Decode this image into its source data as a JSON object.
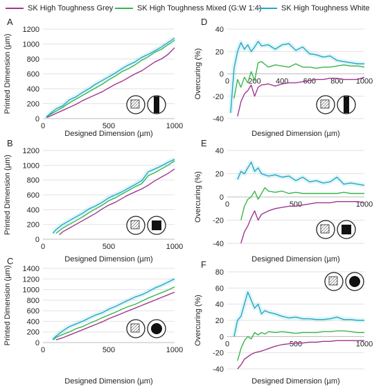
{
  "legend": [
    {
      "name": "SK High Toughness Grey",
      "color": "#a0368f"
    },
    {
      "name": "SK High Toughness Mixed (G:W 1:4)",
      "color": "#39b54a"
    },
    {
      "name": "SK High Toughness White",
      "color": "#1fa9c6"
    }
  ],
  "chart_data": [
    {
      "type": "line",
      "panel": "A",
      "xlabel": "Designed Dimension (µm)",
      "ylabel": "Printed Dimension (µm)",
      "xlim": [
        0,
        1000
      ],
      "ylim": [
        0,
        1200
      ],
      "xticks": [
        0,
        500,
        1000
      ],
      "yticks": [
        0,
        200,
        400,
        600,
        800,
        1000,
        1200
      ],
      "icon": "bar",
      "series": [
        {
          "name": "SK High Toughness Grey",
          "x": [
            25,
            50,
            100,
            150,
            200,
            250,
            300,
            350,
            400,
            450,
            500,
            550,
            600,
            650,
            700,
            750,
            800,
            850,
            900,
            950,
            1000
          ],
          "y": [
            15,
            30,
            70,
            110,
            150,
            190,
            240,
            280,
            320,
            360,
            410,
            460,
            500,
            550,
            600,
            640,
            700,
            760,
            800,
            860,
            950
          ]
        },
        {
          "name": "SK High Toughness Mixed (G:W 1:4)",
          "x": [
            25,
            50,
            100,
            150,
            200,
            250,
            300,
            350,
            400,
            450,
            500,
            550,
            600,
            650,
            700,
            750,
            800,
            850,
            900,
            950,
            1000
          ],
          "y": [
            20,
            50,
            100,
            150,
            210,
            260,
            310,
            360,
            410,
            460,
            520,
            570,
            630,
            670,
            720,
            780,
            830,
            890,
            930,
            990,
            1050
          ]
        },
        {
          "name": "SK High Toughness White",
          "x": [
            25,
            50,
            100,
            150,
            200,
            250,
            300,
            350,
            400,
            450,
            500,
            550,
            600,
            650,
            700,
            750,
            800,
            850,
            900,
            950,
            1000
          ],
          "y": [
            20,
            60,
            130,
            170,
            250,
            290,
            350,
            400,
            460,
            510,
            560,
            610,
            670,
            720,
            760,
            820,
            860,
            910,
            960,
            1020,
            1080
          ]
        }
      ]
    },
    {
      "type": "line",
      "panel": "D",
      "xlabel": "Designed Dimension (µm)",
      "ylabel": "Overcuring (%)",
      "xlim": [
        0,
        1000
      ],
      "ylim": [
        -40,
        40
      ],
      "xticks": [
        0,
        200,
        400,
        600,
        800,
        1000
      ],
      "yticks": [
        -40,
        -20,
        0,
        20,
        40
      ],
      "icon": "bar",
      "series": [
        {
          "name": "SK High Toughness Grey",
          "x": [
            75,
            100,
            125,
            150,
            175,
            200,
            225,
            250,
            300,
            350,
            400,
            450,
            500,
            550,
            600,
            650,
            700,
            750,
            800,
            850,
            900,
            950,
            1000
          ],
          "y": [
            -38,
            -25,
            -18,
            -15,
            -10,
            -20,
            -12,
            -10,
            -9,
            -11,
            -9,
            -8,
            -8,
            -7,
            -6,
            -5,
            -5,
            -4,
            -4,
            -5,
            -5,
            -5,
            -3
          ]
        },
        {
          "name": "SK High Toughness Mixed (G:W 1:4)",
          "x": [
            50,
            75,
            100,
            125,
            150,
            175,
            200,
            225,
            250,
            300,
            350,
            400,
            450,
            500,
            550,
            600,
            650,
            700,
            750,
            800,
            850,
            900,
            950,
            1000
          ],
          "y": [
            -22,
            -5,
            -12,
            -3,
            -8,
            2,
            -6,
            10,
            11,
            6,
            8,
            7,
            6,
            9,
            6,
            6,
            5,
            6,
            6,
            7,
            8,
            7,
            7,
            6
          ]
        },
        {
          "name": "SK High Toughness White",
          "x": [
            25,
            50,
            75,
            100,
            125,
            150,
            175,
            200,
            225,
            250,
            300,
            350,
            400,
            450,
            500,
            550,
            600,
            650,
            700,
            750,
            800,
            850,
            900,
            950,
            1000
          ],
          "y": [
            -35,
            5,
            20,
            28,
            22,
            26,
            20,
            24,
            29,
            25,
            26,
            22,
            26,
            27,
            21,
            24,
            18,
            17,
            15,
            16,
            12,
            11,
            10,
            9,
            9
          ]
        }
      ]
    },
    {
      "type": "line",
      "panel": "B",
      "xlabel": "Designed Dimension (µm)",
      "ylabel": "Printed Dimension (µm)",
      "xlim": [
        0,
        1000
      ],
      "ylim": [
        0,
        1200
      ],
      "xticks": [
        0,
        500,
        1000
      ],
      "yticks": [
        0,
        200,
        400,
        600,
        800,
        1000,
        1200
      ],
      "icon": "square",
      "series": [
        {
          "name": "SK High Toughness Grey",
          "x": [
            125,
            150,
            200,
            250,
            300,
            350,
            400,
            450,
            500,
            550,
            600,
            650,
            700,
            750,
            800,
            850,
            900,
            950,
            1000
          ],
          "y": [
            60,
            100,
            150,
            200,
            250,
            300,
            350,
            410,
            460,
            500,
            550,
            600,
            640,
            680,
            730,
            790,
            840,
            890,
            950
          ]
        },
        {
          "name": "SK High Toughness Mixed (G:W 1:4)",
          "x": [
            100,
            150,
            200,
            250,
            300,
            350,
            400,
            450,
            500,
            550,
            600,
            650,
            700,
            750,
            800,
            850,
            900,
            950,
            1000
          ],
          "y": [
            80,
            150,
            200,
            250,
            300,
            360,
            410,
            460,
            520,
            560,
            610,
            660,
            710,
            750,
            860,
            900,
            950,
            1000,
            1060
          ]
        },
        {
          "name": "SK High Toughness White",
          "x": [
            75,
            100,
            150,
            200,
            250,
            300,
            350,
            400,
            450,
            500,
            550,
            600,
            650,
            700,
            750,
            800,
            850,
            900,
            950,
            1000
          ],
          "y": [
            80,
            130,
            200,
            250,
            300,
            350,
            410,
            450,
            500,
            560,
            600,
            640,
            690,
            740,
            790,
            910,
            950,
            990,
            1040,
            1080
          ]
        }
      ]
    },
    {
      "type": "line",
      "panel": "E",
      "xlabel": "Designed Dimension (µm)",
      "ylabel": "Overcuring (%)",
      "xlim": [
        0,
        1000
      ],
      "ylim": [
        -40,
        40
      ],
      "xticks": [
        0,
        500,
        1000
      ],
      "yticks": [
        -40,
        -20,
        0,
        20,
        40
      ],
      "icon": "square",
      "series": [
        {
          "name": "SK High Toughness Grey",
          "x": [
            100,
            125,
            150,
            175,
            200,
            225,
            250,
            300,
            350,
            400,
            450,
            500,
            550,
            600,
            650,
            700,
            750,
            800,
            850,
            900,
            950,
            1000
          ],
          "y": [
            -40,
            -30,
            -25,
            -18,
            -12,
            -20,
            -15,
            -12,
            -10,
            -9,
            -8,
            -8,
            -7,
            -6,
            -5,
            -5,
            -5,
            -4,
            -4,
            -4,
            -4,
            -5
          ]
        },
        {
          "name": "SK High Toughness Mixed (G:W 1:4)",
          "x": [
            100,
            125,
            150,
            175,
            200,
            225,
            250,
            275,
            300,
            350,
            400,
            450,
            500,
            550,
            600,
            650,
            700,
            750,
            800,
            850,
            900,
            950,
            1000
          ],
          "y": [
            -20,
            -8,
            -2,
            0,
            5,
            -2,
            3,
            8,
            5,
            4,
            5,
            3,
            4,
            3,
            3,
            3,
            3,
            3,
            3,
            4,
            3,
            3,
            3
          ]
        },
        {
          "name": "SK High Toughness White",
          "x": [
            75,
            100,
            125,
            150,
            175,
            200,
            225,
            250,
            300,
            350,
            400,
            450,
            500,
            550,
            600,
            650,
            700,
            750,
            800,
            850,
            900,
            950,
            1000
          ],
          "y": [
            15,
            22,
            20,
            25,
            30,
            22,
            25,
            20,
            18,
            19,
            17,
            18,
            14,
            17,
            13,
            14,
            12,
            13,
            17,
            11,
            12,
            11,
            10
          ]
        }
      ]
    },
    {
      "type": "line",
      "panel": "C",
      "xlabel": "Designed Dimension (µm)",
      "ylabel": "Printed Dimension (µm)",
      "xlim": [
        0,
        1000
      ],
      "ylim": [
        0,
        1400
      ],
      "xticks": [
        0,
        500,
        1000
      ],
      "yticks": [
        0,
        200,
        400,
        600,
        800,
        1000,
        1200,
        1400
      ],
      "icon": "circle",
      "series": [
        {
          "name": "SK High Toughness Grey",
          "x": [
            100,
            150,
            200,
            250,
            300,
            350,
            400,
            450,
            500,
            550,
            600,
            650,
            700,
            750,
            800,
            850,
            900,
            950,
            1000
          ],
          "y": [
            50,
            90,
            140,
            190,
            240,
            290,
            340,
            390,
            450,
            500,
            550,
            600,
            650,
            700,
            750,
            800,
            850,
            900,
            950
          ]
        },
        {
          "name": "SK High Toughness Mixed (G:W 1:4)",
          "x": [
            75,
            100,
            150,
            200,
            250,
            300,
            350,
            400,
            450,
            500,
            550,
            600,
            650,
            700,
            750,
            800,
            850,
            900,
            950,
            1000
          ],
          "y": [
            50,
            100,
            150,
            200,
            260,
            300,
            360,
            410,
            470,
            520,
            570,
            630,
            680,
            720,
            780,
            840,
            890,
            940,
            990,
            1050
          ]
        },
        {
          "name": "SK High Toughness White",
          "x": [
            75,
            100,
            150,
            200,
            250,
            300,
            350,
            400,
            450,
            500,
            550,
            600,
            650,
            700,
            750,
            800,
            850,
            900,
            950,
            1000
          ],
          "y": [
            60,
            120,
            220,
            300,
            350,
            400,
            460,
            520,
            560,
            630,
            680,
            740,
            800,
            860,
            900,
            960,
            1030,
            1080,
            1140,
            1200
          ]
        }
      ]
    },
    {
      "type": "line",
      "panel": "F",
      "xlabel": "Designed Dimension (µm)",
      "ylabel": "Overcuring (%)",
      "xlim": [
        0,
        1000
      ],
      "ylim": [
        -40,
        80
      ],
      "xticks": [
        0,
        500,
        1000
      ],
      "yticks": [
        -40,
        -20,
        0,
        20,
        40,
        60,
        80
      ],
      "icon": "circle",
      "series": [
        {
          "name": "SK High Toughness Grey",
          "x": [
            75,
            100,
            125,
            150,
            175,
            200,
            250,
            300,
            350,
            400,
            450,
            500,
            550,
            600,
            650,
            700,
            750,
            800,
            850,
            900,
            950,
            1000
          ],
          "y": [
            -40,
            -35,
            -28,
            -25,
            -22,
            -20,
            -18,
            -15,
            -12,
            -10,
            -9,
            -8,
            -8,
            -7,
            -7,
            -6,
            -6,
            -5,
            -5,
            -5,
            -5,
            -5
          ]
        },
        {
          "name": "SK High Toughness Mixed (G:W 1:4)",
          "x": [
            75,
            100,
            125,
            150,
            175,
            200,
            225,
            250,
            275,
            300,
            350,
            400,
            450,
            500,
            550,
            600,
            650,
            700,
            750,
            800,
            850,
            900,
            950,
            1000
          ],
          "y": [
            -30,
            -15,
            -5,
            0,
            -3,
            5,
            2,
            5,
            3,
            6,
            5,
            6,
            5,
            4,
            5,
            5,
            5,
            6,
            6,
            7,
            7,
            6,
            5,
            5
          ]
        },
        {
          "name": "SK High Toughness White",
          "x": [
            50,
            75,
            100,
            125,
            150,
            175,
            200,
            225,
            250,
            275,
            300,
            350,
            400,
            450,
            500,
            550,
            600,
            650,
            700,
            750,
            800,
            850,
            900,
            950,
            1000
          ],
          "y": [
            0,
            20,
            25,
            40,
            55,
            45,
            35,
            40,
            28,
            32,
            30,
            28,
            25,
            23,
            24,
            22,
            22,
            21,
            21,
            22,
            24,
            21,
            21,
            20,
            20
          ]
        }
      ]
    }
  ]
}
